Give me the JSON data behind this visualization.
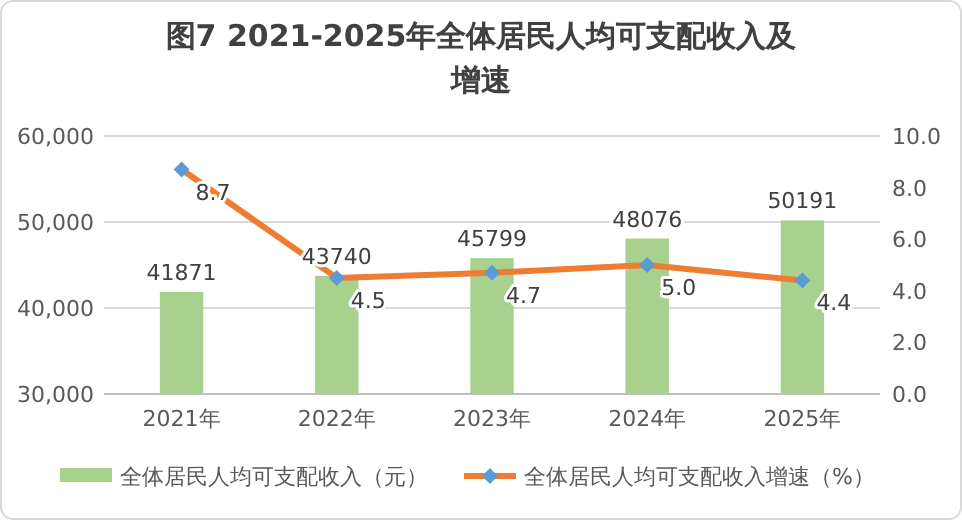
{
  "chart_data": {
    "type": "bar",
    "title": "图7  2021-2025年全体居民人均可支配收入及增速",
    "categories": [
      "2021年",
      "2022年",
      "2023年",
      "2024年",
      "2025年"
    ],
    "series": [
      {
        "name": "全体居民人均可支配收入（元）",
        "color": "#a9d18e",
        "values": [
          41871,
          43740,
          45799,
          48076,
          50191
        ],
        "value_labels": [
          "41871",
          "43740",
          "45799",
          "48076",
          "50191"
        ]
      },
      {
        "name": "全体居民人均可支配收入增速（%）",
        "type": "line",
        "axis": "y2",
        "color": "#ed7d31",
        "values": [
          8.7,
          4.5,
          4.7,
          5.0,
          4.4
        ],
        "value_labels": [
          "8.7",
          "4.5",
          "4.7",
          "5.0",
          "4.4"
        ]
      }
    ],
    "ylim": [
      30000,
      60000
    ],
    "yticks": [
      {
        "value": 30000,
        "label": "30,000"
      },
      {
        "value": 40000,
        "label": "40,000"
      },
      {
        "value": 50000,
        "label": "50,000"
      },
      {
        "value": 60000,
        "label": "60,000"
      }
    ],
    "y2lim": [
      0,
      10
    ],
    "y2ticks": [
      {
        "value": 0,
        "label": "0.0"
      },
      {
        "value": 2,
        "label": "2.0"
      },
      {
        "value": 4,
        "label": "4.0"
      },
      {
        "value": 6,
        "label": "6.0"
      },
      {
        "value": 8,
        "label": "8.0"
      },
      {
        "value": 10,
        "label": "10.0"
      }
    ],
    "grid": "y",
    "legend": "bottom",
    "marker": "diamond"
  }
}
